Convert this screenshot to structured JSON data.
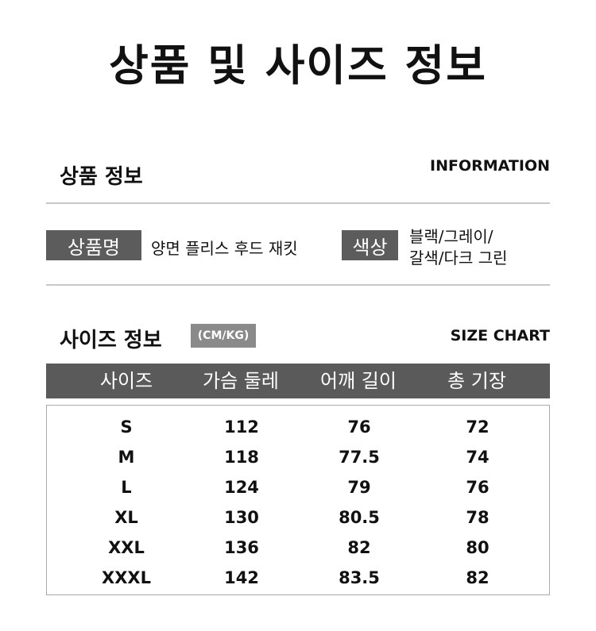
{
  "title": "상품 및 사이즈 정보",
  "product_info": {
    "heading": "상품 정보",
    "english": "INFORMATION",
    "name_label": "상품명",
    "name_value": "양면 플리스 후드 재킷",
    "color_label": "색상",
    "color_value_line1": "블랙/그레이/",
    "color_value_line2": "갈색/다크 그린"
  },
  "size_info": {
    "heading": "사이즈 정보",
    "unit_badge": "(CM/KG)",
    "english": "SIZE CHART"
  },
  "table": {
    "headers": [
      "사이즈",
      "가슴 둘레",
      "어깨 길이",
      "총 기장"
    ],
    "rows": [
      [
        "S",
        "112",
        "76",
        "72"
      ],
      [
        "M",
        "118",
        "77.5",
        "74"
      ],
      [
        "L",
        "124",
        "79",
        "76"
      ],
      [
        "XL",
        "130",
        "80.5",
        "78"
      ],
      [
        "XXL",
        "136",
        "82",
        "80"
      ],
      [
        "XXXL",
        "142",
        "83.5",
        "82"
      ]
    ]
  }
}
